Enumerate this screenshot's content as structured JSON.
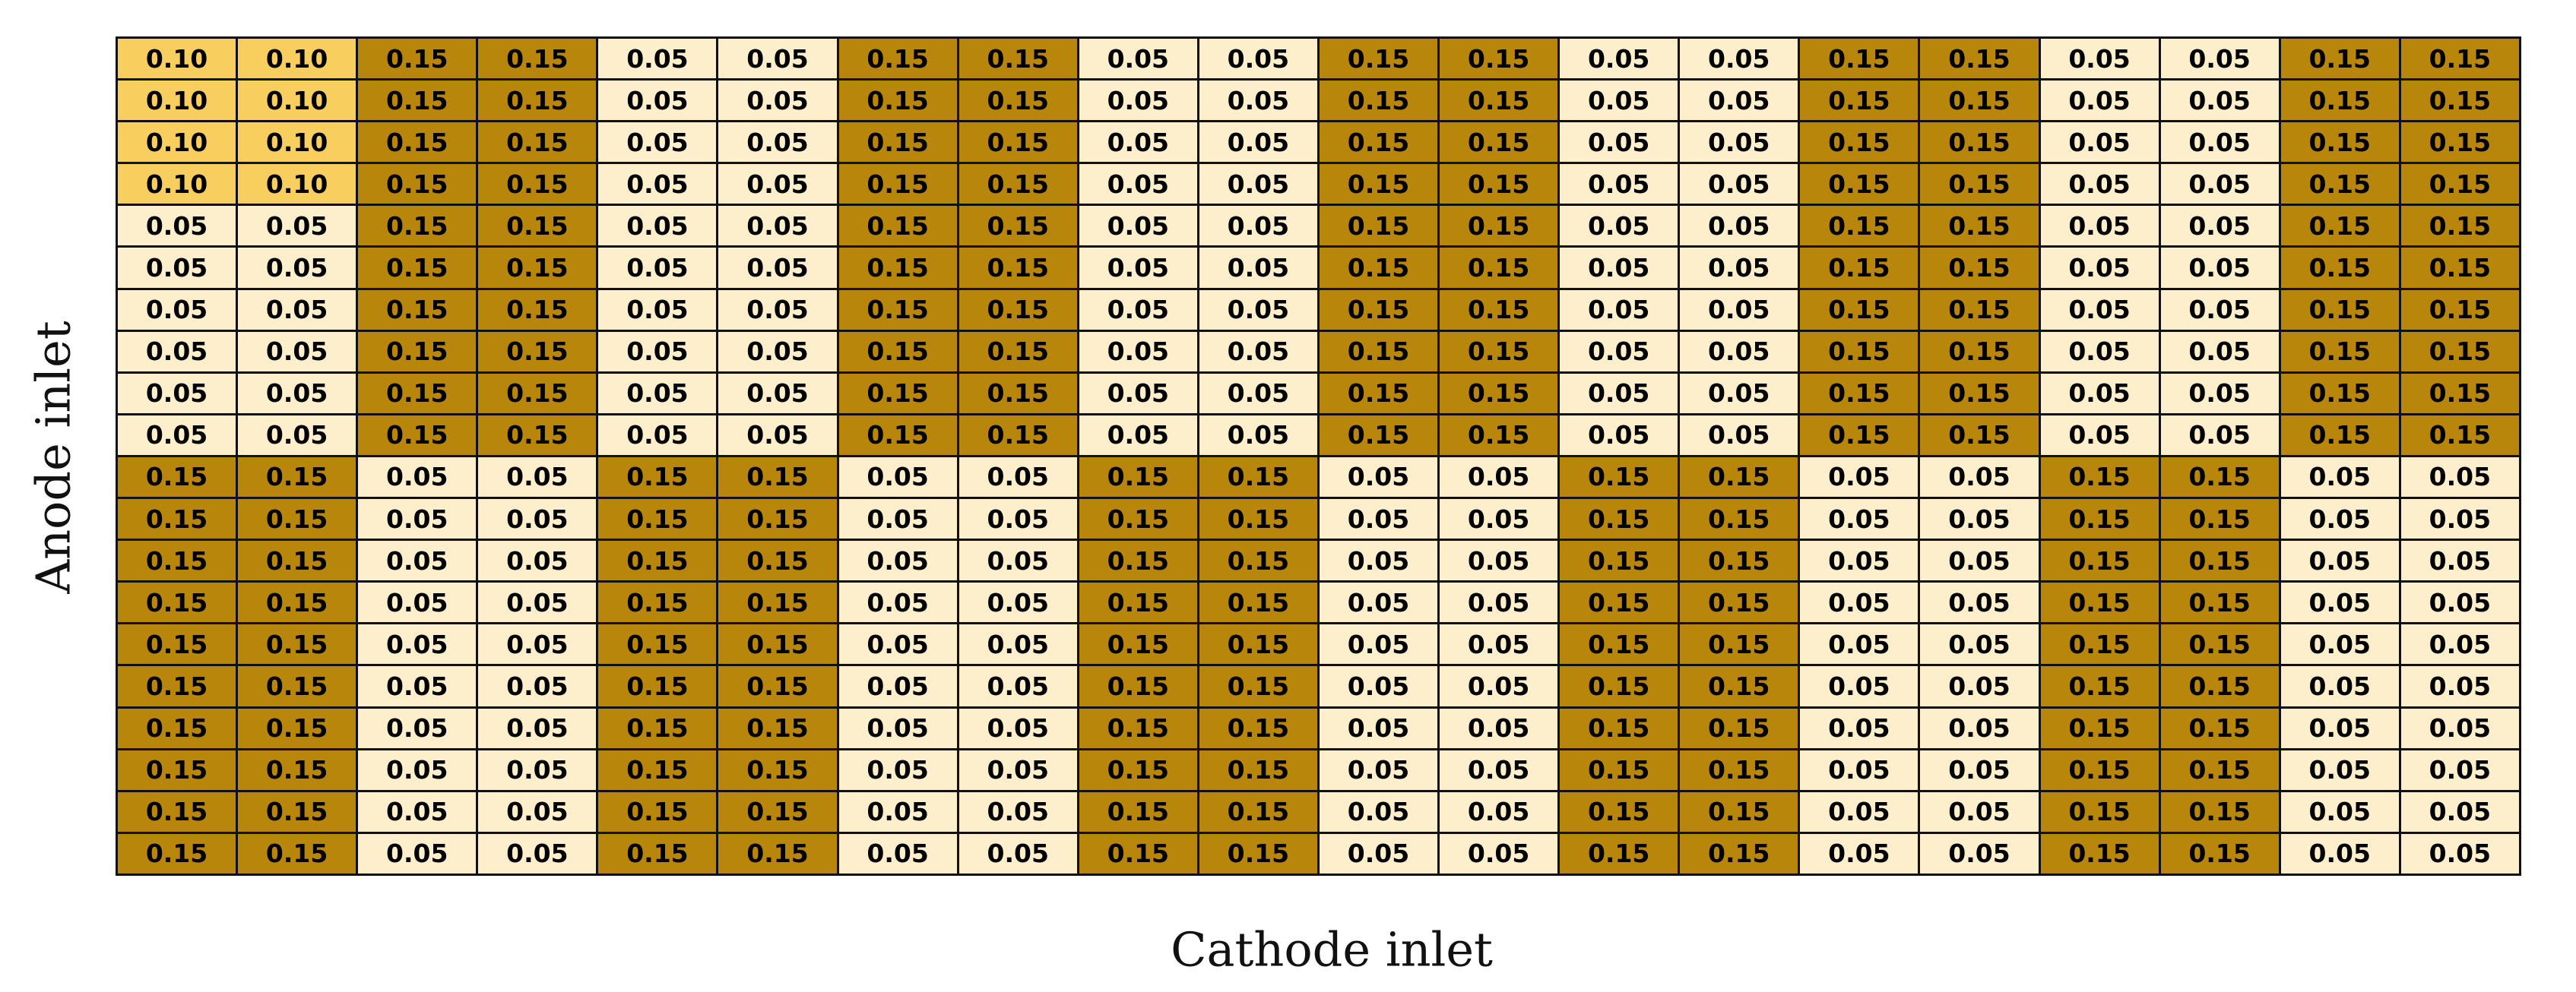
{
  "chart_data": {
    "type": "heatmap",
    "title": "",
    "xlabel": "Cathode inlet",
    "ylabel": "Anode inlet",
    "grid": true,
    "legend": "none",
    "n_rows": 20,
    "n_cols": 20,
    "values": [
      [
        "0.10",
        "0.10",
        "0.15",
        "0.15",
        "0.05",
        "0.05",
        "0.15",
        "0.15",
        "0.05",
        "0.05",
        "0.15",
        "0.15",
        "0.05",
        "0.05",
        "0.15",
        "0.15",
        "0.05",
        "0.05",
        "0.15",
        "0.15"
      ],
      [
        "0.10",
        "0.10",
        "0.15",
        "0.15",
        "0.05",
        "0.05",
        "0.15",
        "0.15",
        "0.05",
        "0.05",
        "0.15",
        "0.15",
        "0.05",
        "0.05",
        "0.15",
        "0.15",
        "0.05",
        "0.05",
        "0.15",
        "0.15"
      ],
      [
        "0.10",
        "0.10",
        "0.15",
        "0.15",
        "0.05",
        "0.05",
        "0.15",
        "0.15",
        "0.05",
        "0.05",
        "0.15",
        "0.15",
        "0.05",
        "0.05",
        "0.15",
        "0.15",
        "0.05",
        "0.05",
        "0.15",
        "0.15"
      ],
      [
        "0.10",
        "0.10",
        "0.15",
        "0.15",
        "0.05",
        "0.05",
        "0.15",
        "0.15",
        "0.05",
        "0.05",
        "0.15",
        "0.15",
        "0.05",
        "0.05",
        "0.15",
        "0.15",
        "0.05",
        "0.05",
        "0.15",
        "0.15"
      ],
      [
        "0.05",
        "0.05",
        "0.15",
        "0.15",
        "0.05",
        "0.05",
        "0.15",
        "0.15",
        "0.05",
        "0.05",
        "0.15",
        "0.15",
        "0.05",
        "0.05",
        "0.15",
        "0.15",
        "0.05",
        "0.05",
        "0.15",
        "0.15"
      ],
      [
        "0.05",
        "0.05",
        "0.15",
        "0.15",
        "0.05",
        "0.05",
        "0.15",
        "0.15",
        "0.05",
        "0.05",
        "0.15",
        "0.15",
        "0.05",
        "0.05",
        "0.15",
        "0.15",
        "0.05",
        "0.05",
        "0.15",
        "0.15"
      ],
      [
        "0.05",
        "0.05",
        "0.15",
        "0.15",
        "0.05",
        "0.05",
        "0.15",
        "0.15",
        "0.05",
        "0.05",
        "0.15",
        "0.15",
        "0.05",
        "0.05",
        "0.15",
        "0.15",
        "0.05",
        "0.05",
        "0.15",
        "0.15"
      ],
      [
        "0.05",
        "0.05",
        "0.15",
        "0.15",
        "0.05",
        "0.05",
        "0.15",
        "0.15",
        "0.05",
        "0.05",
        "0.15",
        "0.15",
        "0.05",
        "0.05",
        "0.15",
        "0.15",
        "0.05",
        "0.05",
        "0.15",
        "0.15"
      ],
      [
        "0.05",
        "0.05",
        "0.15",
        "0.15",
        "0.05",
        "0.05",
        "0.15",
        "0.15",
        "0.05",
        "0.05",
        "0.15",
        "0.15",
        "0.05",
        "0.05",
        "0.15",
        "0.15",
        "0.05",
        "0.05",
        "0.15",
        "0.15"
      ],
      [
        "0.05",
        "0.05",
        "0.15",
        "0.15",
        "0.05",
        "0.05",
        "0.15",
        "0.15",
        "0.05",
        "0.05",
        "0.15",
        "0.15",
        "0.05",
        "0.05",
        "0.15",
        "0.15",
        "0.05",
        "0.05",
        "0.15",
        "0.15"
      ],
      [
        "0.15",
        "0.15",
        "0.05",
        "0.05",
        "0.15",
        "0.15",
        "0.05",
        "0.05",
        "0.15",
        "0.15",
        "0.05",
        "0.05",
        "0.15",
        "0.15",
        "0.05",
        "0.05",
        "0.15",
        "0.15",
        "0.05",
        "0.05"
      ],
      [
        "0.15",
        "0.15",
        "0.05",
        "0.05",
        "0.15",
        "0.15",
        "0.05",
        "0.05",
        "0.15",
        "0.15",
        "0.05",
        "0.05",
        "0.15",
        "0.15",
        "0.05",
        "0.05",
        "0.15",
        "0.15",
        "0.05",
        "0.05"
      ],
      [
        "0.15",
        "0.15",
        "0.05",
        "0.05",
        "0.15",
        "0.15",
        "0.05",
        "0.05",
        "0.15",
        "0.15",
        "0.05",
        "0.05",
        "0.15",
        "0.15",
        "0.05",
        "0.05",
        "0.15",
        "0.15",
        "0.05",
        "0.05"
      ],
      [
        "0.15",
        "0.15",
        "0.05",
        "0.05",
        "0.15",
        "0.15",
        "0.05",
        "0.05",
        "0.15",
        "0.15",
        "0.05",
        "0.05",
        "0.15",
        "0.15",
        "0.05",
        "0.05",
        "0.15",
        "0.15",
        "0.05",
        "0.05"
      ],
      [
        "0.15",
        "0.15",
        "0.05",
        "0.05",
        "0.15",
        "0.15",
        "0.05",
        "0.05",
        "0.15",
        "0.15",
        "0.05",
        "0.05",
        "0.15",
        "0.15",
        "0.05",
        "0.05",
        "0.15",
        "0.15",
        "0.05",
        "0.05"
      ],
      [
        "0.15",
        "0.15",
        "0.05",
        "0.05",
        "0.15",
        "0.15",
        "0.05",
        "0.05",
        "0.15",
        "0.15",
        "0.05",
        "0.05",
        "0.15",
        "0.15",
        "0.05",
        "0.05",
        "0.15",
        "0.15",
        "0.05",
        "0.05"
      ],
      [
        "0.15",
        "0.15",
        "0.05",
        "0.05",
        "0.15",
        "0.15",
        "0.05",
        "0.05",
        "0.15",
        "0.15",
        "0.05",
        "0.05",
        "0.15",
        "0.15",
        "0.05",
        "0.05",
        "0.15",
        "0.15",
        "0.05",
        "0.05"
      ],
      [
        "0.15",
        "0.15",
        "0.05",
        "0.05",
        "0.15",
        "0.15",
        "0.05",
        "0.05",
        "0.15",
        "0.15",
        "0.05",
        "0.05",
        "0.15",
        "0.15",
        "0.05",
        "0.05",
        "0.15",
        "0.15",
        "0.05",
        "0.05"
      ],
      [
        "0.15",
        "0.15",
        "0.05",
        "0.05",
        "0.15",
        "0.15",
        "0.05",
        "0.05",
        "0.15",
        "0.15",
        "0.05",
        "0.05",
        "0.15",
        "0.15",
        "0.05",
        "0.05",
        "0.15",
        "0.15",
        "0.05",
        "0.05"
      ],
      [
        "0.15",
        "0.15",
        "0.05",
        "0.05",
        "0.15",
        "0.15",
        "0.05",
        "0.05",
        "0.15",
        "0.15",
        "0.05",
        "0.05",
        "0.15",
        "0.15",
        "0.05",
        "0.05",
        "0.15",
        "0.15",
        "0.05",
        "0.05"
      ]
    ],
    "colors": {
      "0.05": "#FDEFCC",
      "0.10": "#F8CF5E",
      "0.15": "#B8860B"
    },
    "border_color": "#111111"
  }
}
